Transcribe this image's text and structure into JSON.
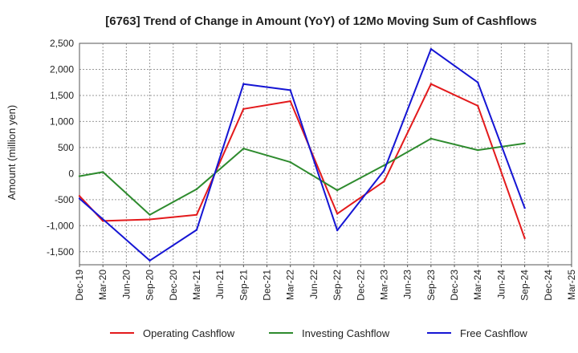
{
  "chart_data": {
    "type": "line",
    "title": "[6763]  Trend of Change in Amount (YoY) of 12Mo Moving Sum of Cashflows",
    "xlabel": "",
    "ylabel": "Amount (million yen)",
    "ylim": [
      -1750,
      2500
    ],
    "yticks": [
      -1500,
      -1000,
      -500,
      0,
      500,
      1000,
      1500,
      2000,
      2500
    ],
    "ytick_labels": [
      "-1,500",
      "-1,000",
      "-500",
      "0",
      "500",
      "1,000",
      "1,500",
      "2,000",
      "2,500"
    ],
    "grid": true,
    "legend_position": "bottom",
    "categories": [
      "Dec-19",
      "Mar-20",
      "Jun-20",
      "Sep-20",
      "Dec-20",
      "Mar-21",
      "Jun-21",
      "Sep-21",
      "Dec-21",
      "Mar-22",
      "Jun-22",
      "Sep-22",
      "Dec-22",
      "Mar-23",
      "Jun-23",
      "Sep-23",
      "Dec-23",
      "Mar-24",
      "Jun-24",
      "Sep-24",
      "Dec-24",
      "Mar-25"
    ],
    "series": [
      {
        "name": "Operating Cashflow",
        "color": "#e31a1c",
        "values": [
          -430,
          -910,
          null,
          -880,
          null,
          -790,
          null,
          1240,
          null,
          1390,
          null,
          -770,
          null,
          -150,
          null,
          1720,
          null,
          1300,
          null,
          -1240,
          null,
          null
        ]
      },
      {
        "name": "Investing Cashflow",
        "color": "#2e8b2e",
        "values": [
          -50,
          30,
          null,
          -790,
          null,
          -300,
          null,
          480,
          null,
          220,
          null,
          -320,
          null,
          160,
          null,
          670,
          null,
          450,
          null,
          580,
          null,
          null
        ]
      },
      {
        "name": "Free Cashflow",
        "color": "#1515d4",
        "values": [
          -480,
          null,
          null,
          -1670,
          null,
          -1080,
          null,
          1720,
          null,
          1600,
          null,
          -1090,
          null,
          60,
          null,
          2390,
          null,
          1750,
          null,
          -660,
          null,
          null
        ]
      }
    ]
  }
}
